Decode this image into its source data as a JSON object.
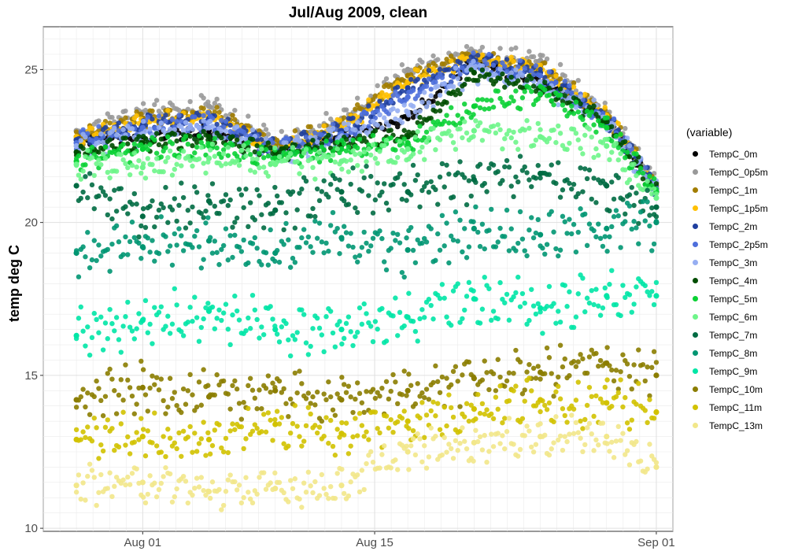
{
  "chart_data": {
    "type": "scatter",
    "title": "Jul/Aug 2009, clean",
    "xlabel": "",
    "ylabel": "temp deg C",
    "x_range": [
      "2009-07-26",
      "2009-09-02"
    ],
    "x_ticks": [
      "Aug 01",
      "Aug 15",
      "Sep 01"
    ],
    "x_tick_dates": [
      "2009-08-01",
      "2009-08-15",
      "2009-09-01"
    ],
    "ylim": [
      9.9,
      26.4
    ],
    "y_ticks": [
      10,
      15,
      20,
      25
    ],
    "grid": true,
    "legend_title": "(variable)",
    "legend_position": "right",
    "series": [
      {
        "name": "TempC_0m",
        "color": "#000000",
        "x": [
          "2009-07-28",
          "2009-08-01",
          "2009-08-05",
          "2009-08-09",
          "2009-08-13",
          "2009-08-17",
          "2009-08-21",
          "2009-08-25",
          "2009-08-29",
          "2009-09-01"
        ],
        "y": [
          22.7,
          22.8,
          23.0,
          22.4,
          22.8,
          23.4,
          25.3,
          24.6,
          23.4,
          21.0
        ]
      },
      {
        "name": "TempC_0p5m",
        "color": "#999999",
        "x": [
          "2009-07-28",
          "2009-08-01",
          "2009-08-05",
          "2009-08-09",
          "2009-08-13",
          "2009-08-17",
          "2009-08-21",
          "2009-08-25",
          "2009-08-29",
          "2009-09-01"
        ],
        "y": [
          23.0,
          23.6,
          23.8,
          22.6,
          23.4,
          25.0,
          25.5,
          25.3,
          23.6,
          21.3
        ]
      },
      {
        "name": "TempC_1m",
        "color": "#a27d00",
        "x": [
          "2009-07-28",
          "2009-08-01",
          "2009-08-05",
          "2009-08-09",
          "2009-08-13",
          "2009-08-17",
          "2009-08-21",
          "2009-08-25",
          "2009-08-29",
          "2009-09-01"
        ],
        "y": [
          22.8,
          23.4,
          23.6,
          22.5,
          23.2,
          24.8,
          25.4,
          25.1,
          23.5,
          21.2
        ]
      },
      {
        "name": "TempC_1p5m",
        "color": "#ffc000",
        "x": [
          "2009-07-28",
          "2009-08-01",
          "2009-08-05",
          "2009-08-09",
          "2009-08-13",
          "2009-08-17",
          "2009-08-21",
          "2009-08-25",
          "2009-08-29",
          "2009-09-01"
        ],
        "y": [
          22.8,
          23.3,
          23.5,
          22.4,
          23.1,
          24.6,
          25.4,
          25.0,
          23.5,
          21.2
        ]
      },
      {
        "name": "TempC_2m",
        "color": "#1f3f9f",
        "x": [
          "2009-07-28",
          "2009-08-01",
          "2009-08-05",
          "2009-08-09",
          "2009-08-13",
          "2009-08-17",
          "2009-08-21",
          "2009-08-25",
          "2009-08-29",
          "2009-09-01"
        ],
        "y": [
          22.7,
          23.2,
          23.4,
          22.4,
          23.0,
          24.4,
          25.3,
          24.9,
          23.4,
          21.1
        ]
      },
      {
        "name": "TempC_2p5m",
        "color": "#4e6fdc",
        "x": [
          "2009-07-28",
          "2009-08-01",
          "2009-08-05",
          "2009-08-09",
          "2009-08-13",
          "2009-08-17",
          "2009-08-21",
          "2009-08-25",
          "2009-08-29",
          "2009-09-01"
        ],
        "y": [
          22.6,
          23.1,
          23.3,
          22.4,
          22.9,
          24.1,
          25.2,
          24.8,
          23.4,
          21.1
        ]
      },
      {
        "name": "TempC_3m",
        "color": "#96aef2",
        "x": [
          "2009-07-28",
          "2009-08-01",
          "2009-08-05",
          "2009-08-09",
          "2009-08-13",
          "2009-08-17",
          "2009-08-21",
          "2009-08-25",
          "2009-08-29",
          "2009-09-01"
        ],
        "y": [
          22.5,
          22.9,
          23.1,
          22.3,
          22.8,
          23.6,
          25.0,
          24.6,
          23.3,
          21.0
        ]
      },
      {
        "name": "TempC_4m",
        "color": "#004d00",
        "x": [
          "2009-07-28",
          "2009-08-01",
          "2009-08-05",
          "2009-08-09",
          "2009-08-13",
          "2009-08-17",
          "2009-08-21",
          "2009-08-25",
          "2009-08-29",
          "2009-09-01"
        ],
        "y": [
          22.3,
          22.6,
          22.8,
          22.3,
          22.6,
          22.8,
          24.9,
          24.4,
          23.3,
          21.0
        ]
      },
      {
        "name": "TempC_5m",
        "color": "#0ad134",
        "x": [
          "2009-07-28",
          "2009-08-01",
          "2009-08-05",
          "2009-08-09",
          "2009-08-13",
          "2009-08-17",
          "2009-08-21",
          "2009-08-25",
          "2009-08-29",
          "2009-09-01"
        ],
        "y": [
          22.0,
          22.4,
          22.5,
          22.1,
          22.4,
          22.6,
          23.8,
          24.2,
          23.1,
          21.0
        ]
      },
      {
        "name": "TempC_6m",
        "color": "#6ef58a",
        "x": [
          "2009-07-28",
          "2009-08-01",
          "2009-08-05",
          "2009-08-09",
          "2009-08-13",
          "2009-08-17",
          "2009-08-21",
          "2009-08-25",
          "2009-08-29",
          "2009-09-01"
        ],
        "y": [
          21.9,
          21.8,
          22.1,
          21.9,
          22.0,
          22.4,
          23.0,
          22.8,
          22.5,
          20.8
        ]
      },
      {
        "name": "TempC_7m",
        "color": "#006b43",
        "x": [
          "2009-07-28",
          "2009-08-01",
          "2009-08-05",
          "2009-08-09",
          "2009-08-13",
          "2009-08-17",
          "2009-08-21",
          "2009-08-25",
          "2009-08-29",
          "2009-09-01"
        ],
        "y": [
          21.2,
          20.2,
          20.7,
          20.4,
          21.0,
          21.0,
          21.4,
          21.6,
          21.2,
          20.5
        ]
      },
      {
        "name": "TempC_8m",
        "color": "#009672",
        "x": [
          "2009-07-28",
          "2009-08-01",
          "2009-08-05",
          "2009-08-09",
          "2009-08-13",
          "2009-08-17",
          "2009-08-21",
          "2009-08-25",
          "2009-08-29",
          "2009-09-01"
        ],
        "y": [
          19.0,
          19.2,
          19.4,
          19.0,
          19.5,
          19.1,
          19.8,
          19.6,
          19.8,
          20.0
        ]
      },
      {
        "name": "TempC_9m",
        "color": "#00e6a6",
        "x": [
          "2009-07-28",
          "2009-08-01",
          "2009-08-05",
          "2009-08-09",
          "2009-08-13",
          "2009-08-17",
          "2009-08-21",
          "2009-08-25",
          "2009-08-29",
          "2009-09-01"
        ],
        "y": [
          16.3,
          16.8,
          17.1,
          16.5,
          16.5,
          16.9,
          17.5,
          17.2,
          17.6,
          17.6
        ]
      },
      {
        "name": "TempC_10m",
        "color": "#8b7d00",
        "x": [
          "2009-07-28",
          "2009-08-01",
          "2009-08-05",
          "2009-08-09",
          "2009-08-13",
          "2009-08-17",
          "2009-08-21",
          "2009-08-25",
          "2009-08-29",
          "2009-09-01"
        ],
        "y": [
          14.2,
          14.6,
          14.3,
          14.5,
          14.2,
          14.5,
          14.9,
          15.1,
          15.4,
          15.0
        ]
      },
      {
        "name": "TempC_11m",
        "color": "#d2c200",
        "x": [
          "2009-07-28",
          "2009-08-01",
          "2009-08-05",
          "2009-08-09",
          "2009-08-13",
          "2009-08-17",
          "2009-08-21",
          "2009-08-25",
          "2009-08-29",
          "2009-09-01"
        ],
        "y": [
          12.9,
          13.0,
          12.9,
          13.4,
          13.1,
          13.5,
          13.9,
          14.2,
          14.1,
          13.8
        ]
      },
      {
        "name": "TempC_13m",
        "color": "#f2e78a",
        "x": [
          "2009-07-28",
          "2009-08-01",
          "2009-08-05",
          "2009-08-09",
          "2009-08-13",
          "2009-08-17",
          "2009-08-21",
          "2009-08-25",
          "2009-08-29",
          "2009-09-01"
        ],
        "y": [
          11.4,
          11.5,
          11.2,
          11.3,
          11.4,
          12.5,
          12.8,
          13.0,
          13.0,
          12.0
        ]
      }
    ]
  }
}
